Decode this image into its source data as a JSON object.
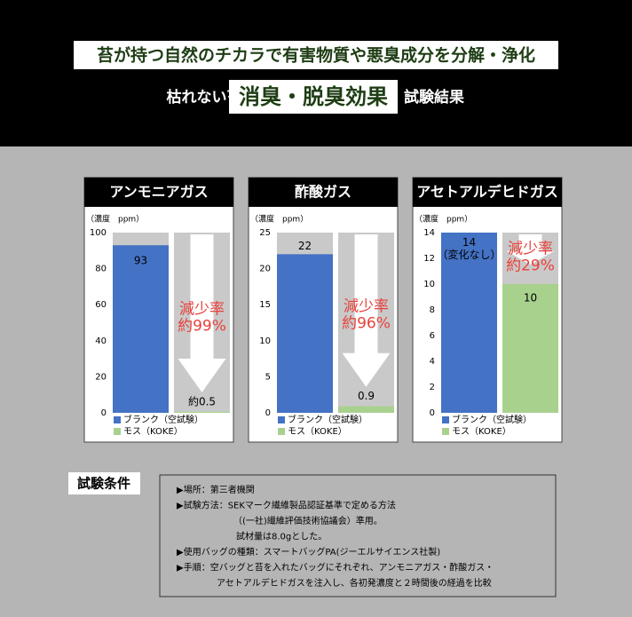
{
  "header": {
    "headline": "苔が持つ自然のチカラで有害物質や悪臭成分を分解・浄化",
    "prefix": "枯れない苔",
    "highlight": "消臭・脱臭効果",
    "suffix": "試験結果"
  },
  "chart_data": [
    {
      "type": "bar",
      "title": "アンモニアガス",
      "unit": "（濃度　ppm）",
      "ylim": [
        0,
        100
      ],
      "yticks": [
        0,
        20,
        40,
        60,
        80,
        100
      ],
      "reduction": "減少率\n約99%",
      "series": [
        {
          "name": "ブランク（空試験）",
          "color": "#4472c4",
          "values": [
            93
          ]
        },
        {
          "name": "モス（KOKE）",
          "color": "#a9d18e",
          "values": [
            0.5
          ],
          "value_labels": [
            "約0.5"
          ]
        }
      ]
    },
    {
      "type": "bar",
      "title": "酢酸ガス",
      "unit": "（濃度　ppm）",
      "ylim": [
        0,
        25
      ],
      "yticks": [
        0,
        5,
        10,
        15,
        20,
        25
      ],
      "reduction": "減少率\n約96%",
      "series": [
        {
          "name": "ブランク（空試験）",
          "color": "#4472c4",
          "values": [
            22
          ]
        },
        {
          "name": "モス（KOKE）",
          "color": "#a9d18e",
          "values": [
            0.9
          ]
        }
      ]
    },
    {
      "type": "bar",
      "title": "アセトアルデヒドガス",
      "unit": "（濃度　ppm）",
      "ylim": [
        0,
        14
      ],
      "yticks": [
        0,
        2,
        4,
        6,
        8,
        10,
        12,
        14
      ],
      "reduction": "減少率\n約29%",
      "series": [
        {
          "name": "ブランク（空試験）",
          "color": "#4472c4",
          "values": [
            14
          ],
          "value_labels": [
            "14\n（変化なし）"
          ]
        },
        {
          "name": "モス（KOKE）",
          "color": "#a9d18e",
          "values": [
            10
          ]
        }
      ]
    }
  ],
  "conditions": {
    "title": "試験条件",
    "items": [
      {
        "text": "▶場所：第三者機関",
        "continuation": []
      },
      {
        "text": "▶試験方法：SEKマーク繊維製品認証基準で定める方法",
        "continuation": [
          "（(一社)繊維評価技術協議会）準用。",
          "試材量は8.0gとした。"
        ]
      },
      {
        "text": "▶使用バッグの種類：スマートバッグPA(ジーエルサイエンス社製)",
        "continuation": []
      },
      {
        "text": "▶手順：空バッグと苔を入れたバッグにそれぞれ、アンモニアガス・酢酸ガス・",
        "continuation": [
          "アセトアルデヒドガスを注入し、各初発濃度と２時間後の経過を比較"
        ]
      }
    ]
  }
}
